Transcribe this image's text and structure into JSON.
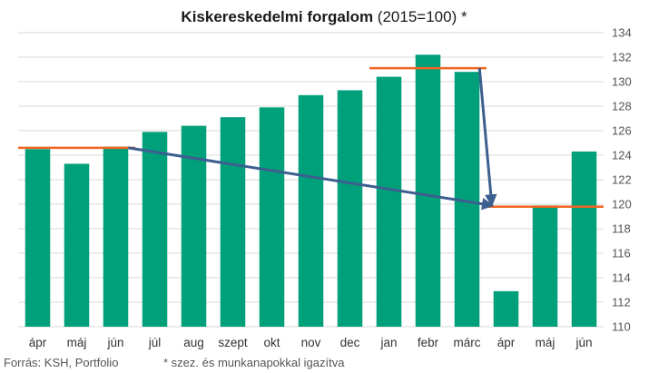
{
  "chart_data": {
    "type": "bar",
    "title_bold": "Kiskereskedelmi forgalom",
    "title_rest": " (2015=100) *",
    "categories": [
      "ápr",
      "máj",
      "jún",
      "júl",
      "aug",
      "szept",
      "okt",
      "nov",
      "dec",
      "jan",
      "febr",
      "márc",
      "ápr",
      "máj",
      "jún"
    ],
    "values": [
      124.5,
      123.3,
      124.7,
      125.9,
      126.4,
      127.1,
      127.9,
      128.9,
      129.3,
      130.4,
      132.2,
      130.8,
      112.9,
      119.9,
      124.3
    ],
    "ylim": [
      110,
      134
    ],
    "yticks": [
      110,
      112,
      114,
      116,
      118,
      120,
      122,
      124,
      126,
      128,
      130,
      132,
      134
    ],
    "grid": true,
    "colors": {
      "bar": "#00a07a",
      "level_line": "#f26522",
      "arrow": "#3d5f8f",
      "grid": "#d9d9d9"
    },
    "annotations": {
      "level_lines": [
        {
          "from_index": 0,
          "to_index": 2,
          "value": 124.6
        },
        {
          "from_index": 9,
          "to_index": 11,
          "value": 131.1
        },
        {
          "from_index": 12,
          "to_index": 14,
          "value": 119.8
        }
      ],
      "arrows": [
        {
          "from_index": 2,
          "from_value": 124.6,
          "to_index": 12,
          "to_value": 119.9
        },
        {
          "from_index": 11,
          "from_value": 131.1,
          "to_index": 12,
          "to_value": 120.0
        }
      ]
    }
  },
  "footer": {
    "source": "Forrás: KSH, Portfolio",
    "note": "* szez. és munkanapokkal igazítva"
  }
}
